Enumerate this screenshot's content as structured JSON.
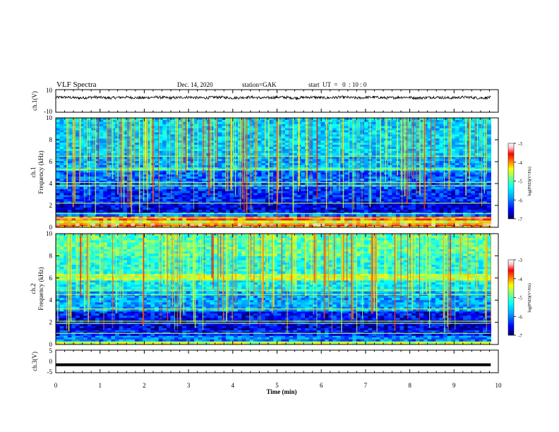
{
  "header": {
    "title": "VLF Spectra",
    "date": "Dec. 14, 2020",
    "station": "station=GAK",
    "start": "start  UT  =   0  : 10 : 0"
  },
  "chart_data": [
    {
      "type": "line",
      "ylabel": "ch.1(V)",
      "yticks": [
        "10",
        "-10"
      ],
      "ylim": [
        -10,
        10
      ],
      "xlim": [
        0,
        10
      ],
      "series": [
        {
          "description_value": "noise waveform around 3 V",
          "mean": 3.0,
          "amplitude": 1.2
        }
      ],
      "color": "#000000"
    },
    {
      "type": "heatmap",
      "ylabel": "ch.1\nFrequency (kHz)",
      "ylim": [
        0,
        10
      ],
      "yticks": [
        "0",
        "2",
        "4",
        "6",
        "8",
        "10"
      ],
      "xlim": [
        0,
        10
      ],
      "data_end_min": 9.83,
      "colorbar": {
        "ticks": [
          "-3",
          "-4",
          "-5",
          "-6",
          "-7"
        ],
        "range": [
          -7,
          -3
        ],
        "label": "log(PSD)(V²/Hz)"
      },
      "bands": [
        {
          "f": [
            0.0,
            0.15
          ],
          "level": -4.2
        },
        {
          "f": [
            0.15,
            0.4
          ],
          "level": -3.6
        },
        {
          "f": [
            0.4,
            0.65
          ],
          "level": -4.4
        },
        {
          "f": [
            0.65,
            1.0
          ],
          "level": -3.8
        },
        {
          "f": [
            1.0,
            1.4
          ],
          "level": -6.0
        },
        {
          "f": [
            1.4,
            2.2
          ],
          "level": -6.6
        },
        {
          "f": [
            2.2,
            3.5
          ],
          "level": -6.4
        },
        {
          "f": [
            3.5,
            5.2
          ],
          "level": -6.1
        },
        {
          "f": [
            5.2,
            5.5
          ],
          "level": -5.4
        },
        {
          "f": [
            5.5,
            6.6
          ],
          "level": -5.8
        },
        {
          "f": [
            6.6,
            10.0
          ],
          "level": -5.6
        }
      ],
      "lines_khz": [
        0.3,
        0.5,
        0.85,
        1.25,
        2.2,
        3.8,
        4.1,
        5.3,
        6.5
      ]
    },
    {
      "type": "heatmap",
      "ylabel": "ch.2\nFrequency (kHz)",
      "ylim": [
        0,
        10
      ],
      "yticks": [
        "0",
        "2",
        "4",
        "6",
        "8",
        "10"
      ],
      "xlim": [
        0,
        10
      ],
      "data_end_min": 9.83,
      "colorbar": {
        "ticks": [
          "-3",
          "-4",
          "-5",
          "-6",
          "-7"
        ],
        "range": [
          -7,
          -3
        ],
        "label": "log(PSD)(V²/Hz)"
      },
      "bands": [
        {
          "f": [
            0.0,
            0.3
          ],
          "level": -4.6
        },
        {
          "f": [
            0.3,
            0.8
          ],
          "level": -6.0
        },
        {
          "f": [
            0.8,
            1.3
          ],
          "level": -6.4
        },
        {
          "f": [
            1.3,
            2.0
          ],
          "level": -6.6
        },
        {
          "f": [
            2.0,
            3.0
          ],
          "level": -6.5
        },
        {
          "f": [
            3.0,
            4.8
          ],
          "level": -5.8
        },
        {
          "f": [
            4.8,
            5.8
          ],
          "level": -5.4
        },
        {
          "f": [
            5.8,
            6.4
          ],
          "level": -4.6
        },
        {
          "f": [
            6.4,
            8.0
          ],
          "level": -5.2
        },
        {
          "f": [
            8.0,
            10.0
          ],
          "level": -5.0
        }
      ],
      "lines_khz": [
        0.2,
        1.0,
        1.9,
        2.1,
        3.2,
        4.5,
        4.9,
        6.0,
        6.2
      ]
    },
    {
      "type": "line",
      "ylabel": "ch.3(V)",
      "yticks": [
        "5",
        "0",
        "-5"
      ],
      "ylim": [
        -5,
        5
      ],
      "xlim": [
        0,
        10
      ],
      "series": [
        {
          "constant": -1.5
        }
      ],
      "color": "#000000"
    }
  ],
  "xaxis": {
    "label": "Time (min)",
    "ticks": [
      "0",
      "1",
      "2",
      "3",
      "4",
      "5",
      "6",
      "7",
      "8",
      "9",
      "10"
    ]
  },
  "colors": {
    "map": [
      "#000060",
      "#0000ff",
      "#00a0ff",
      "#00ffff",
      "#80ff80",
      "#ffff00",
      "#ff8000",
      "#ff0000",
      "#ffc0c0",
      "#ffffff"
    ]
  }
}
